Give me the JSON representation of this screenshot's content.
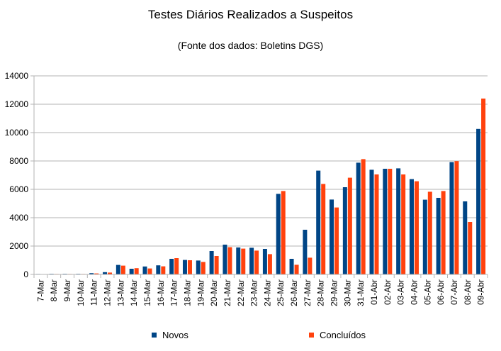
{
  "chart_data": {
    "type": "bar",
    "title": "Testes Diários Realizados a Suspeitos",
    "subtitle": "(Fonte dos dados: Boletins DGS)",
    "xlabel": "",
    "ylabel": "",
    "ylim": [
      0,
      14000
    ],
    "yticks": [
      0,
      2000,
      4000,
      6000,
      8000,
      10000,
      12000,
      14000
    ],
    "grid": true,
    "legend_position": "bottom",
    "categories": [
      "7-Mar",
      "8-Mar",
      "9-Mar",
      "10-Mar",
      "11-Mar",
      "12-Mar",
      "13-Mar",
      "14-Mar",
      "15-Mar",
      "16-Mar",
      "17-Mar",
      "18-Mar",
      "19-Mar",
      "20-Mar",
      "21-Mar",
      "22-Mar",
      "23-Mar",
      "24-Mar",
      "25-Mar",
      "26-Mar",
      "27-Mar",
      "28-Mar",
      "29-Mar",
      "30-Mar",
      "31-Mar",
      "01-Abr",
      "02-Abr",
      "03-Abr",
      "04-Abr",
      "05-Abr",
      "06-Abr",
      "07-Abr",
      "08-Abr",
      "09-Abr"
    ],
    "series": [
      {
        "name": "Novos",
        "color": "#004586",
        "values": [
          30,
          40,
          40,
          40,
          90,
          160,
          670,
          400,
          560,
          640,
          1100,
          1020,
          980,
          1650,
          2100,
          1900,
          1880,
          1800,
          5680,
          1100,
          3150,
          7320,
          5280,
          6150,
          7880,
          7380,
          7450,
          7480,
          6720,
          5270,
          5400,
          7920,
          5150,
          10260
        ]
      },
      {
        "name": "Concluídos",
        "color": "#ff420e",
        "values": [
          20,
          30,
          30,
          30,
          70,
          130,
          620,
          440,
          420,
          570,
          1150,
          1000,
          880,
          1300,
          1920,
          1820,
          1680,
          1430,
          5880,
          680,
          1180,
          6380,
          4720,
          6820,
          8130,
          7050,
          7450,
          7050,
          6570,
          5830,
          5880,
          7990,
          3700,
          12400
        ]
      }
    ]
  }
}
